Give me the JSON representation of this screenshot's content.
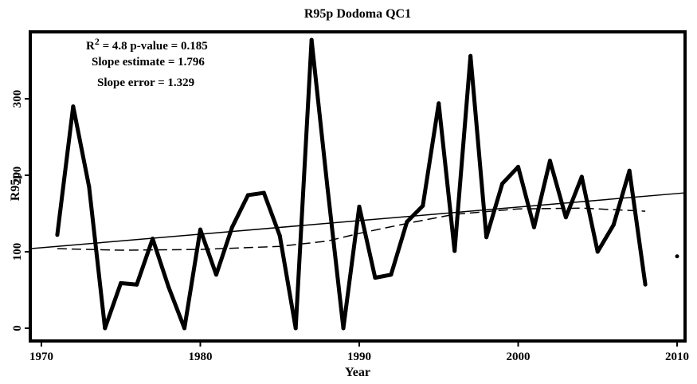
{
  "chart_data": {
    "type": "line",
    "title": "R95p Dodoma QC1",
    "x_label": "Year",
    "y_label": "R95p",
    "stats": {
      "r_base": "R",
      "r_sup": "2",
      "r_rest": " = 4.8 p-value = 0.185",
      "slope": "Slope estimate = 1.796",
      "slope_error": "Slope error = 1.329"
    },
    "x": [
      1971,
      1972,
      1973,
      1974,
      1975,
      1976,
      1977,
      1978,
      1979,
      1980,
      1981,
      1982,
      1983,
      1984,
      1985,
      1986,
      1987,
      1988,
      1989,
      1990,
      1991,
      1992,
      1993,
      1994,
      1995,
      1996,
      1997,
      1998,
      1999,
      2000,
      2001,
      2002,
      2003,
      2004,
      2005,
      2006,
      2007,
      2008,
      2009,
      2010
    ],
    "series": [
      {
        "color": "#000000",
        "style": "thick",
        "x": [
          1971,
          1972,
          1973,
          1974,
          1975,
          1976,
          1977,
          1978,
          1979,
          1980,
          1981,
          1982,
          1983,
          1984,
          1985,
          1986,
          1987,
          1988,
          1989,
          1990,
          1991,
          1992,
          1993,
          1994,
          1995,
          1996,
          1997,
          1998,
          1999,
          2000,
          2001,
          2002,
          2003,
          2004,
          2005,
          2006,
          2007,
          2008,
          2009,
          2010
        ],
        "values": [
          122,
          290,
          185,
          0,
          59,
          57,
          117,
          54,
          0,
          129,
          70,
          132,
          174,
          177,
          121,
          0,
          377,
          184,
          0,
          159,
          66,
          70,
          139,
          160,
          294,
          101,
          356,
          119,
          189,
          211,
          132,
          219,
          145,
          198,
          100,
          135,
          206,
          57,
          null,
          94
        ]
      },
      {
        "color": "#000000",
        "style": "thin",
        "x": [
          1969.3,
          2010.5
        ],
        "values": [
          104,
          177
        ]
      },
      {
        "color": "#000000",
        "style": "dashed",
        "x": [
          1971,
          1975,
          1980,
          1985,
          1988,
          1990,
          1993,
          1996,
          2000,
          2004,
          2008
        ],
        "values": [
          104,
          102,
          103,
          107,
          114,
          124,
          137,
          149,
          156,
          157,
          153
        ]
      }
    ],
    "xlim": [
      1969.3,
      2010.5
    ],
    "ylim": [
      -16.7,
      387.5
    ],
    "xticks": [
      1970,
      1980,
      1990,
      2000,
      2010
    ],
    "yticks": [
      0,
      100,
      200,
      300
    ]
  }
}
